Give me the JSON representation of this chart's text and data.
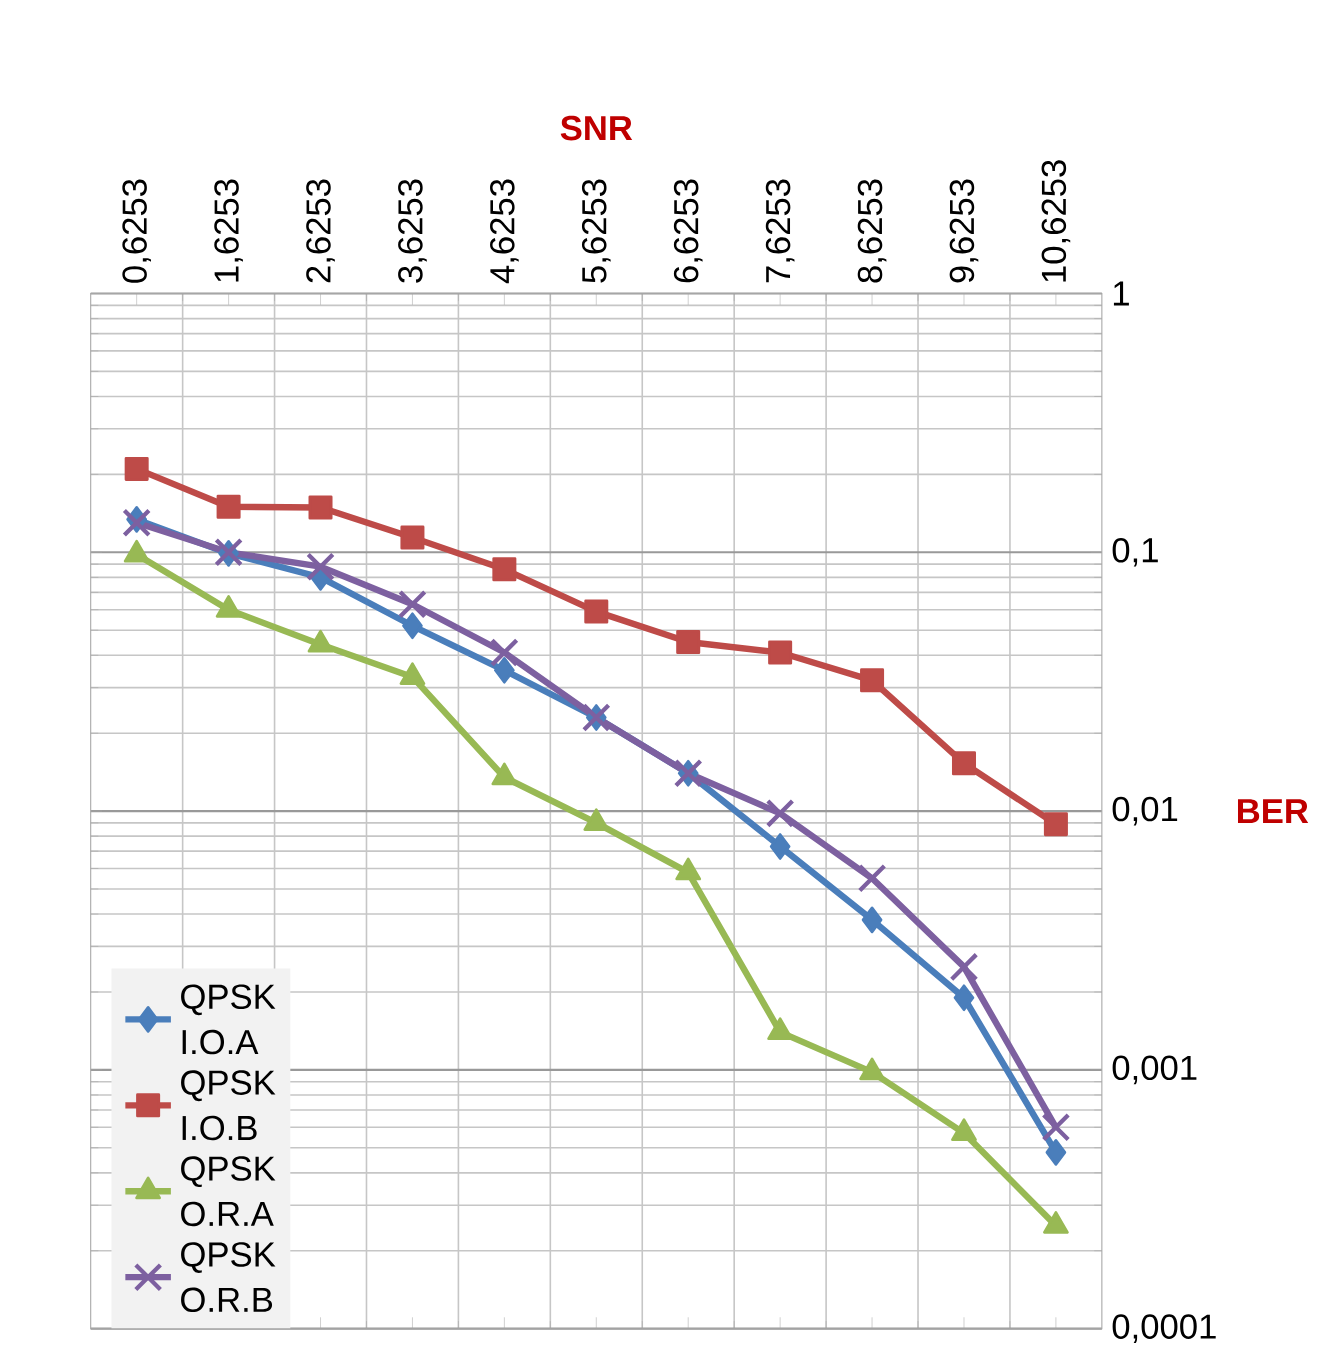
{
  "chart_data": {
    "type": "line",
    "xlabel": "SNR",
    "ylabel": "BER",
    "categories": [
      "0,6253",
      "1,6253",
      "2,6253",
      "3,6253",
      "4,6253",
      "5,6253",
      "6,6253",
      "7,6253",
      "8,6253",
      "9,6253",
      "10,6253"
    ],
    "log": "y",
    "ylim": [
      0.0001,
      1
    ],
    "yticks": [
      {
        "value": 0.0001,
        "label": "0,0001"
      },
      {
        "value": 0.001,
        "label": "0,001"
      },
      {
        "value": 0.01,
        "label": "0,01"
      },
      {
        "value": 0.1,
        "label": "0,1"
      },
      {
        "value": 1,
        "label": "1"
      }
    ],
    "grid": true,
    "legend": "bottom left",
    "series": [
      {
        "name": "QPSK I.O.A",
        "color": "#4a7ebb",
        "marker": "diamond",
        "values": [
          0.134,
          0.099,
          0.08,
          0.052,
          0.035,
          0.023,
          0.014,
          0.0073,
          0.0038,
          0.0019,
          0.00048
        ]
      },
      {
        "name": "QPSK I.O.B",
        "color": "#be4b48",
        "marker": "square",
        "values": [
          0.21,
          0.15,
          0.149,
          0.114,
          0.086,
          0.059,
          0.045,
          0.041,
          0.032,
          0.0153,
          0.0089
        ]
      },
      {
        "name": "QPSK O.R.A",
        "color": "#98b954",
        "marker": "triangle",
        "values": [
          0.098,
          0.06,
          0.044,
          0.033,
          0.0135,
          0.009,
          0.0058,
          0.0014,
          0.00098,
          0.00057,
          0.00025
        ]
      },
      {
        "name": "QPSK O.R.B",
        "color": "#7d60a0",
        "marker": "cross",
        "values": [
          0.13,
          0.1,
          0.088,
          0.063,
          0.041,
          0.023,
          0.014,
          0.0098,
          0.0055,
          0.0025,
          0.0006
        ]
      }
    ]
  }
}
